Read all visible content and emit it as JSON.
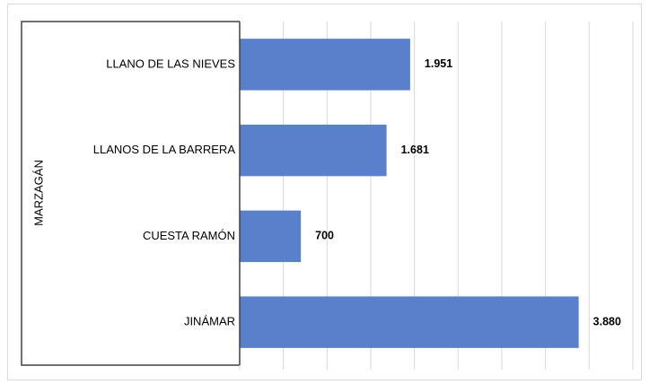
{
  "chart_data": {
    "type": "bar",
    "orientation": "horizontal",
    "group_label": "MARZAGÁN",
    "categories": [
      "LLANO DE LAS NIEVES",
      "LLANOS DE LA BARRERA",
      "CUESTA RAMÓN",
      "JINÁMAR"
    ],
    "values": [
      1951,
      1681,
      700,
      3880
    ],
    "value_labels": [
      "1.951",
      "1.681",
      "700",
      "3.880"
    ],
    "color": "#5b80cb",
    "xlim": [
      0,
      4500
    ],
    "xticks": [
      0,
      500,
      1000,
      1500,
      2000,
      2500,
      3000,
      3500,
      4000,
      4500
    ],
    "grid": true
  }
}
